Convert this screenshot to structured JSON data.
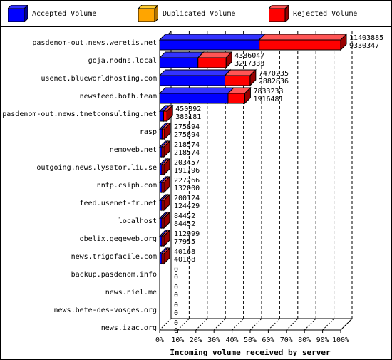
{
  "legend": [
    {
      "label": "Accepted Volume",
      "color": "#0000ff",
      "top": "#3333ff",
      "side": "#000099"
    },
    {
      "label": "Duplicated Volume",
      "color": "#ffa500",
      "top": "#ffcc33",
      "side": "#b37400"
    },
    {
      "label": "Rejected Volume",
      "color": "#ff0000",
      "top": "#ff5555",
      "side": "#990000"
    }
  ],
  "chart_data": {
    "type": "bar",
    "orientation": "horizontal",
    "stacked": true,
    "xlabel": "Incoming volume received by server",
    "xticks": [
      "0%",
      "10%",
      "20%",
      "30%",
      "40%",
      "50%",
      "60%",
      "70%",
      "80%",
      "90%",
      "100%"
    ],
    "max_total": 20733732,
    "categories": [
      "pasdenom-out.news.weretis.net",
      "goja.nodns.local",
      "usenet.blueworldhosting.com",
      "newsfeed.bofh.team",
      "pasdenom-out.news.tnetconsulting.net",
      "rasp",
      "nemoweb.net",
      "outgoing.news.lysator.liu.se",
      "nntp.csiph.com",
      "feed.usenet-fr.net",
      "localhost",
      "obelix.gegeweb.org",
      "news.trigofacile.com",
      "backup.pasdenom.info",
      "news.niel.me",
      "news.bete-des-vosges.org",
      "news.izac.org"
    ],
    "series": [
      {
        "name": "Accepted Volume",
        "values": [
          11403885,
          4386047,
          7470235,
          7833233,
          450392,
          275894,
          218574,
          203457,
          227266,
          200124,
          84452,
          112999,
          40168,
          0,
          0,
          0,
          0
        ]
      },
      {
        "name": "Duplicated Volume",
        "values": [
          0,
          0,
          0,
          0,
          0,
          0,
          0,
          0,
          0,
          0,
          0,
          0,
          0,
          0,
          0,
          0,
          0
        ]
      },
      {
        "name": "Rejected Volume",
        "values": [
          9330347,
          3217333,
          2882836,
          1916481,
          383181,
          275894,
          218574,
          191796,
          132000,
          124429,
          84452,
          77955,
          40168,
          0,
          0,
          0,
          0
        ]
      }
    ],
    "value_labels": [
      [
        "11403885",
        "9330347"
      ],
      [
        "4386047",
        "3217333"
      ],
      [
        "7470235",
        "2882836"
      ],
      [
        "7833233",
        "1916481"
      ],
      [
        "450392",
        "383181"
      ],
      [
        "275894",
        "275894"
      ],
      [
        "218574",
        "218574"
      ],
      [
        "203457",
        "191796"
      ],
      [
        "227266",
        "132000"
      ],
      [
        "200124",
        "124429"
      ],
      [
        "84452",
        "84452"
      ],
      [
        "112999",
        "77955"
      ],
      [
        "40168",
        "40168"
      ],
      [
        "0",
        "0"
      ],
      [
        "0",
        "0"
      ],
      [
        "0",
        "0"
      ],
      [
        "0",
        "0"
      ]
    ],
    "bar_colors": {
      "accepted": {
        "front": "#0000ff",
        "top": "#3333ff",
        "side": "#000099"
      },
      "rejected": {
        "front": "#ff0000",
        "top": "#ff5555",
        "side": "#990000"
      }
    },
    "grid": true,
    "legend_position": "top"
  }
}
